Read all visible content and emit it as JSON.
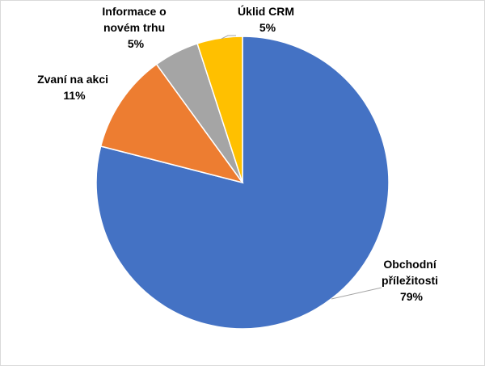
{
  "chart_data": {
    "type": "pie",
    "title": "",
    "start_angle_deg": 0,
    "direction": "clockwise",
    "legend": "none",
    "slices": [
      {
        "label_lines": [
          "Obchodní",
          "příležitosti"
        ],
        "percent_label": "79%",
        "value": 79,
        "color": "#4472C4",
        "label_color": "#4472C4"
      },
      {
        "label_lines": [
          "Zvaní na akci"
        ],
        "percent_label": "11%",
        "value": 11,
        "color": "#ED7D31",
        "label_color": "#ED7D31"
      },
      {
        "label_lines": [
          "Informace o",
          "novém trhu"
        ],
        "percent_label": "5%",
        "value": 5,
        "color": "#A5A5A5",
        "label_color": "#A5A5A5"
      },
      {
        "label_lines": [
          "Úklid CRM"
        ],
        "percent_label": "5%",
        "value": 5,
        "color": "#FFC000",
        "label_color": "#FFC000"
      }
    ],
    "leader_line_color": "#A6A6A6"
  }
}
